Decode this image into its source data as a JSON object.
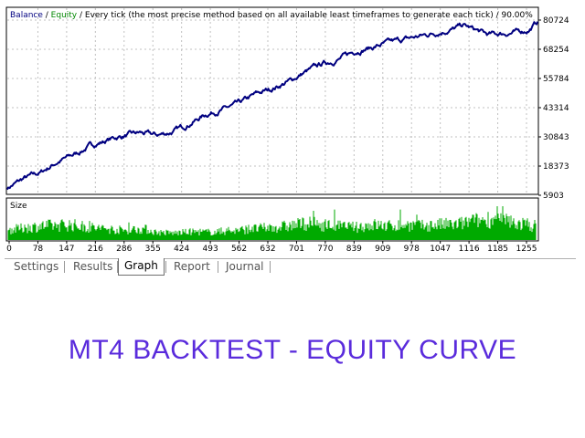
{
  "chart_data": [
    {
      "type": "line",
      "header": {
        "balance": "Balance",
        "sep1": " / ",
        "equity": "Equity",
        "rest": " / Every tick (the most precise method based on all available least timeframes to generate each tick) / 90.00%"
      },
      "yticks": [
        "80724",
        "68254",
        "55784",
        "43314",
        "30843",
        "18373",
        "5903"
      ],
      "ylim": [
        5903,
        80724
      ],
      "series": [
        {
          "name": "Equity",
          "color": "#000080",
          "x": [
            0,
            40,
            80,
            120,
            170,
            200,
            260,
            320,
            360,
            400,
            440,
            480,
            520,
            560,
            600,
            640,
            680,
            720,
            760,
            800,
            840,
            880,
            920,
            960,
            1000,
            1040,
            1080,
            1100,
            1130,
            1160,
            1200,
            1230,
            1260,
            1280
          ],
          "values": [
            9000,
            13000,
            15500,
            20000,
            24000,
            27000,
            30500,
            32500,
            31500,
            33000,
            36500,
            40500,
            42500,
            45000,
            49000,
            51500,
            54500,
            58500,
            62000,
            64000,
            67500,
            69000,
            71000,
            72500,
            74000,
            75500,
            77000,
            78500,
            76500,
            74500,
            75000,
            75500,
            76500,
            80000
          ]
        }
      ]
    },
    {
      "type": "bar",
      "title": "Size",
      "color": "#00aa00",
      "xticks": [
        "0",
        "78",
        "147",
        "216",
        "286",
        "355",
        "424",
        "493",
        "562",
        "632",
        "701",
        "770",
        "839",
        "909",
        "978",
        "1047",
        "1116",
        "1185",
        "1255"
      ],
      "xlim": [
        0,
        1280
      ],
      "ylim": [
        0,
        1
      ],
      "profile": {
        "x": [
          0,
          80,
          150,
          200,
          280,
          330,
          360,
          400,
          450,
          500,
          540,
          580,
          640,
          680,
          720,
          760,
          800,
          840,
          880,
          920,
          960,
          1000,
          1040,
          1080,
          1120,
          1160,
          1200,
          1230,
          1260,
          1280
        ],
        "values": [
          0.35,
          0.5,
          0.55,
          0.45,
          0.35,
          0.4,
          0.28,
          0.25,
          0.3,
          0.28,
          0.32,
          0.38,
          0.45,
          0.5,
          0.6,
          0.55,
          0.5,
          0.45,
          0.55,
          0.5,
          0.55,
          0.5,
          0.55,
          0.55,
          0.65,
          0.75,
          0.7,
          0.6,
          0.55,
          0.5
        ]
      }
    }
  ],
  "tabs": [
    {
      "label": "Settings"
    },
    {
      "label": "Results"
    },
    {
      "label": "Graph"
    },
    {
      "label": "Report"
    },
    {
      "label": "Journal"
    }
  ],
  "active_tab": "Graph",
  "footer_title": "MT4 BACKTEST - EQUITY CURVE"
}
